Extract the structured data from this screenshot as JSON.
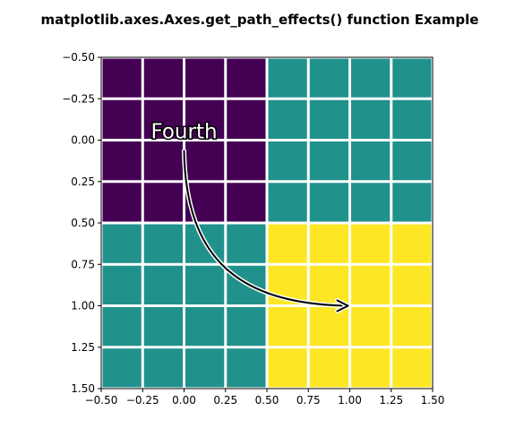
{
  "chart_data": {
    "type": "heatmap",
    "title": "matplotlib.axes.Axes.get_path_effects() function Example",
    "xlabel": "",
    "ylabel": "",
    "xlim": [
      -0.5,
      1.5
    ],
    "ylim": [
      1.5,
      -0.5
    ],
    "xticks": [
      "−0.50",
      "−0.25",
      "0.00",
      "0.25",
      "0.50",
      "0.75",
      "1.00",
      "1.25",
      "1.50"
    ],
    "yticks": [
      "−0.50",
      "−0.25",
      "0.00",
      "0.25",
      "0.50",
      "0.75",
      "1.00",
      "1.25",
      "1.50"
    ],
    "tick_values": [
      -0.5,
      -0.25,
      0,
      0.25,
      0.5,
      0.75,
      1.0,
      1.25,
      1.5
    ],
    "grid": true,
    "image": {
      "extent": [
        -0.5,
        1.5,
        1.5,
        -0.5
      ],
      "values": [
        [
          0,
          1
        ],
        [
          1,
          2
        ]
      ],
      "colors": [
        "#440154",
        "#21918c",
        "#fde725"
      ]
    },
    "grid_color": "#ffffff",
    "annotation": {
      "text": "Fourth",
      "xy": [
        1.0,
        1.0
      ],
      "xytext": [
        0.0,
        0.0
      ],
      "arrow_color": "#000000"
    }
  }
}
